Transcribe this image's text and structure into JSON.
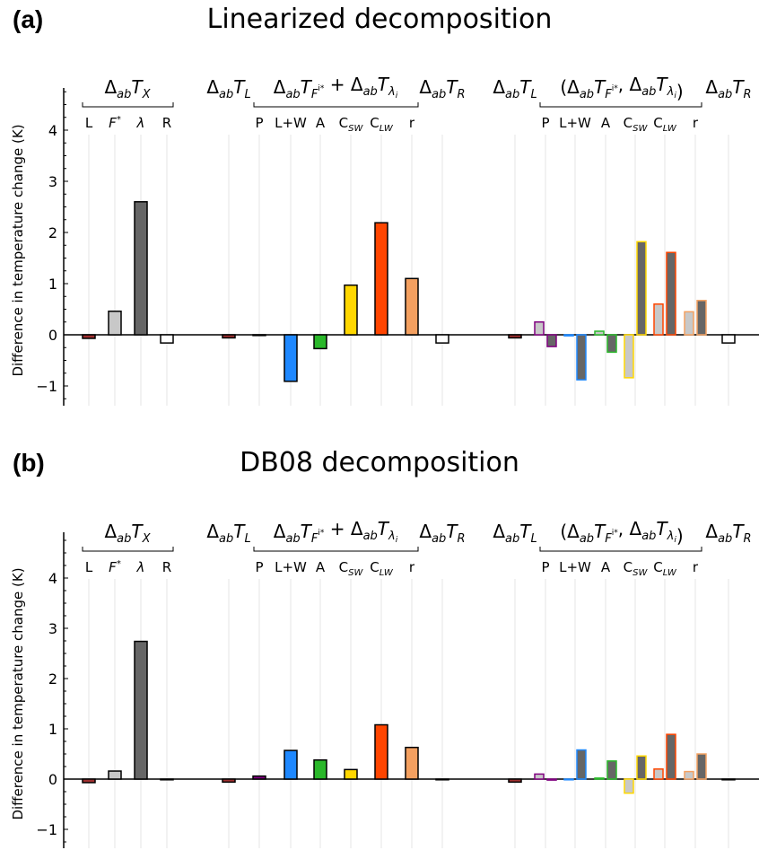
{
  "panels": [
    {
      "letter": "(a)",
      "title": "Linearized decomposition"
    },
    {
      "letter": "(b)",
      "title": "DB08 decomposition"
    }
  ],
  "ylabel": "Difference in temperature change (K)",
  "yticks": [
    -1,
    0,
    1,
    2,
    3,
    4
  ],
  "group_headers": {
    "g1": "ΔabTX",
    "g2L": "ΔabTL",
    "g2mid": "ΔabTFi* + ΔabTλi",
    "g2R": "ΔabTR",
    "g3L": "ΔabTL",
    "g3mid": "(ΔabTFi*, ΔabTλi)",
    "g3R": "ΔabTR"
  },
  "category_labels": {
    "g1": [
      "L",
      "F*",
      "λ",
      "R"
    ],
    "g2": [
      "P",
      "L+W",
      "A",
      "CSW",
      "CLW",
      "r"
    ],
    "g3": [
      "P",
      "L+W",
      "A",
      "CSW",
      "CLW",
      "r"
    ]
  },
  "colors": {
    "L": "#a03030",
    "Fstar": "#c8c8c8",
    "lambda": "#666666",
    "R": "#ffffff",
    "P": "#800080",
    "LW": "#1e88ff",
    "A": "#2ab82a",
    "CSW": "#ffd700",
    "CLW": "#ff4500",
    "r": "#f4a060"
  },
  "chart_data": [
    {
      "type": "bar",
      "title": "Linearized decomposition",
      "ylabel": "Difference in temperature change (K)",
      "ylim": [
        -1.4,
        4.9
      ],
      "g1": {
        "L": -0.07,
        "Fstar": 0.46,
        "lambda": 2.6,
        "R": -0.16
      },
      "g2": {
        "L": -0.06,
        "P": 0.0,
        "LW": -0.91,
        "A": -0.27,
        "CSW": 0.97,
        "CLW": 2.19,
        "r": 1.1,
        "R": -0.16
      },
      "g3": {
        "L": -0.06,
        "pairs": {
          "P": [
            0.25,
            -0.23
          ],
          "LW": [
            -0.02,
            -0.88
          ],
          "A": [
            0.07,
            -0.34
          ],
          "CSW": [
            -0.84,
            1.82
          ],
          "CLW": [
            0.6,
            1.61
          ],
          "r": [
            0.45,
            0.67
          ]
        },
        "R": -0.16
      }
    },
    {
      "type": "bar",
      "title": "DB08 decomposition",
      "ylabel": "Difference in temperature change (K)",
      "ylim": [
        -1.4,
        4.9
      ],
      "g1": {
        "L": -0.07,
        "Fstar": 0.16,
        "lambda": 2.74,
        "R": 0.0
      },
      "g2": {
        "L": -0.06,
        "P": 0.06,
        "LW": 0.57,
        "A": 0.38,
        "CSW": 0.19,
        "CLW": 1.08,
        "r": 0.63,
        "R": 0.0
      },
      "g3": {
        "L": -0.06,
        "pairs": {
          "P": [
            0.1,
            -0.02
          ],
          "LW": [
            0.0,
            0.58
          ],
          "A": [
            0.02,
            0.36
          ],
          "CSW": [
            -0.28,
            0.46
          ],
          "CLW": [
            0.2,
            0.89
          ],
          "r": [
            0.15,
            0.5
          ]
        },
        "R": 0.0
      }
    }
  ]
}
